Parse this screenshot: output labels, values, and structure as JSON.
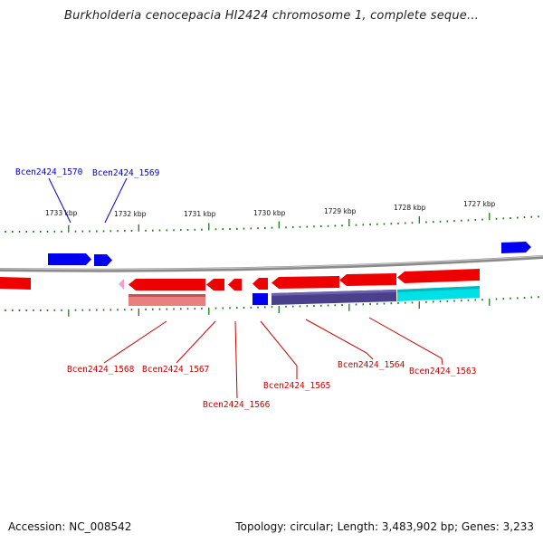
{
  "title": "Burkholderia cenocepacia HI2424 chromosome 1, complete seque...",
  "footer": {
    "accession": "Accession: NC_008542",
    "summary": "Topology: circular; Length: 3,483,902 bp; Genes: 3,233"
  },
  "colors": {
    "backbone": "#8a8a8a",
    "tick": "#1d7a1d",
    "gene_forward": "#0000ee",
    "gene_reverse": "#ee0000",
    "label_blue": "#0000cc",
    "label_red": "#cc0000",
    "cds_pink": "#e88080",
    "cds_purple": "#4a3f8a",
    "cds_cyan": "#00e0e6"
  },
  "scale_labels": [
    "1733 kbp",
    "1732 kbp",
    "1731 kbp",
    "1730 kbp",
    "1729 kbp",
    "1728 kbp",
    "1727 kbp"
  ],
  "gene_labels_top": [
    "Bcen2424_1570",
    "Bcen2424_1569"
  ],
  "gene_labels_bottom": [
    "Bcen2424_1568",
    "Bcen2424_1567",
    "Bcen2424_1566",
    "Bcen2424_1565",
    "Bcen2424_1564",
    "Bcen2424_1563"
  ]
}
